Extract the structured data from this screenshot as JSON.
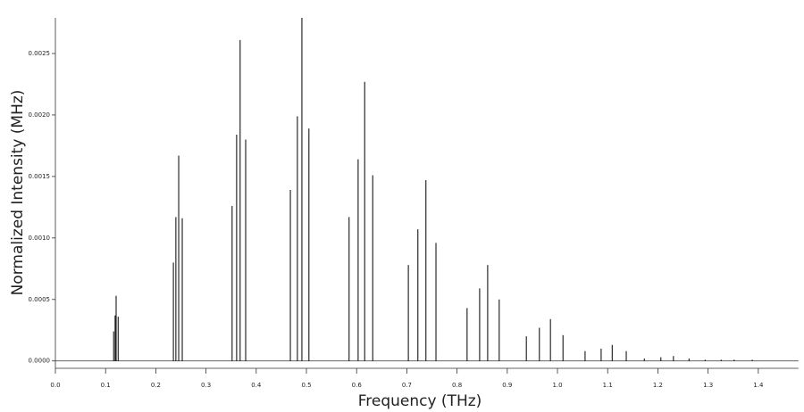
{
  "chart_data": {
    "type": "stick",
    "x_label": "Frequency (THz)",
    "y_label": "Normalized Intensity (MHz)",
    "color": "#000000",
    "x": [
      0.116,
      0.119,
      0.121,
      0.125,
      0.235,
      0.24,
      0.2456,
      0.2527,
      0.352,
      0.361,
      0.368,
      0.379,
      0.468,
      0.482,
      0.491,
      0.505,
      0.585,
      0.603,
      0.616,
      0.632,
      0.703,
      0.722,
      0.738,
      0.758,
      0.82,
      0.845,
      0.861,
      0.884,
      0.938,
      0.964,
      0.986,
      1.011,
      1.055,
      1.087,
      1.109,
      1.137,
      1.173,
      1.206,
      1.231,
      1.262,
      1.294,
      1.326,
      1.352,
      1.388
    ],
    "values": [
      0.00024,
      0.00037,
      0.00053,
      0.00036,
      0.0008,
      0.00117,
      0.00167,
      0.00116,
      0.00126,
      0.00184,
      0.00261,
      0.0018,
      0.00139,
      0.00199,
      0.00279,
      0.00189,
      0.00117,
      0.00164,
      0.00227,
      0.00151,
      0.00078,
      0.00107,
      0.00147,
      0.00096,
      0.00043,
      0.00059,
      0.00078,
      0.0005,
      0.0002,
      0.00027,
      0.00034,
      0.00021,
      8e-05,
      0.0001,
      0.00013,
      8e-05,
      2e-05,
      3e-05,
      4e-05,
      2e-05,
      1e-05,
      1e-05,
      1e-05,
      1e-05
    ],
    "xlim": [
      0,
      1.48
    ],
    "ylim": [
      -6e-05,
      0.00279
    ],
    "xticks": [
      {
        "value": 0,
        "label": "0.0"
      },
      0.1,
      0.2,
      0.3,
      0.4,
      0.5,
      0.6,
      0.7,
      0.8,
      0.9,
      {
        "value": 1,
        "label": "1.0"
      },
      1.1,
      1.2,
      1.3,
      1.4
    ],
    "yticks": [
      {
        "value": 0,
        "label": "0.0000"
      },
      {
        "value": 0.0005,
        "label": "0.0005"
      },
      {
        "value": 0.001,
        "label": "0.0010"
      },
      {
        "value": 0.0015,
        "label": "0.0015"
      },
      {
        "value": 0.002,
        "label": "0.0020"
      },
      {
        "value": 0.0025,
        "label": "0.0025"
      }
    ]
  }
}
